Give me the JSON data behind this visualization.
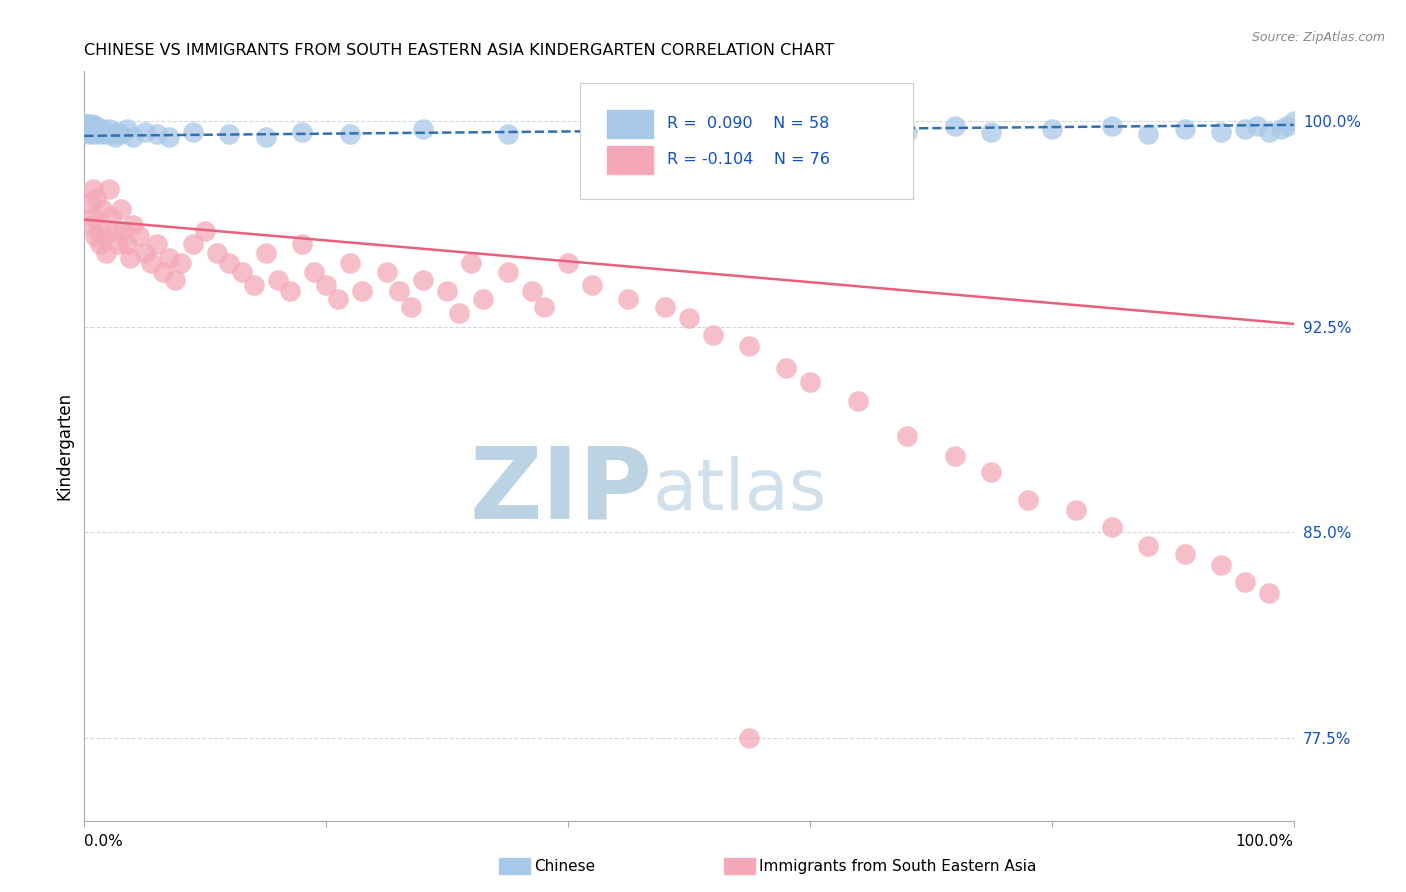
{
  "title": "CHINESE VS IMMIGRANTS FROM SOUTH EASTERN ASIA KINDERGARTEN CORRELATION CHART",
  "source": "Source: ZipAtlas.com",
  "ylabel": "Kindergarten",
  "ylabel_right_labels": [
    "100.0%",
    "92.5%",
    "85.0%",
    "77.5%"
  ],
  "ylabel_right_values": [
    1.0,
    0.925,
    0.85,
    0.775
  ],
  "xlim": [
    0.0,
    1.0
  ],
  "ylim": [
    0.745,
    1.018
  ],
  "blue_color": "#a8c8e8",
  "pink_color": "#f4a8b8",
  "blue_line_color": "#3070b0",
  "pink_line_color": "#e8607a",
  "legend_text_color": "#1050c0",
  "watermark_zip_color": "#b8d4e8",
  "watermark_atlas_color": "#c8dce8",
  "grid_color": "#d0d8e0",
  "blue_trend_intercept": 0.9945,
  "blue_trend_slope": 0.004,
  "pink_trend_intercept": 0.964,
  "pink_trend_slope": -0.038,
  "blue_x": [
    0.001,
    0.002,
    0.002,
    0.003,
    0.003,
    0.003,
    0.004,
    0.004,
    0.005,
    0.005,
    0.006,
    0.006,
    0.007,
    0.007,
    0.008,
    0.008,
    0.009,
    0.01,
    0.01,
    0.012,
    0.013,
    0.015,
    0.016,
    0.018,
    0.02,
    0.022,
    0.025,
    0.028,
    0.03,
    0.035,
    0.04,
    0.05,
    0.06,
    0.07,
    0.09,
    0.12,
    0.15,
    0.18,
    0.22,
    0.28,
    0.35,
    0.45,
    0.55,
    0.62,
    0.68,
    0.72,
    0.75,
    0.8,
    0.85,
    0.88,
    0.91,
    0.94,
    0.96,
    0.97,
    0.98,
    0.99,
    0.995,
    1.0
  ],
  "blue_y": [
    0.998,
    0.999,
    0.997,
    0.998,
    0.996,
    0.999,
    0.997,
    0.995,
    0.998,
    0.996,
    0.997,
    0.999,
    0.996,
    0.998,
    0.997,
    0.995,
    0.996,
    0.997,
    0.998,
    0.996,
    0.995,
    0.997,
    0.996,
    0.995,
    0.997,
    0.995,
    0.994,
    0.996,
    0.995,
    0.997,
    0.994,
    0.996,
    0.995,
    0.994,
    0.996,
    0.995,
    0.994,
    0.996,
    0.995,
    0.997,
    0.995,
    0.996,
    0.995,
    0.997,
    0.996,
    0.998,
    0.996,
    0.997,
    0.998,
    0.995,
    0.997,
    0.996,
    0.997,
    0.998,
    0.996,
    0.997,
    0.998,
    1.0
  ],
  "pink_x": [
    0.005,
    0.006,
    0.007,
    0.008,
    0.009,
    0.01,
    0.012,
    0.013,
    0.015,
    0.016,
    0.018,
    0.02,
    0.022,
    0.025,
    0.028,
    0.03,
    0.032,
    0.035,
    0.038,
    0.04,
    0.045,
    0.05,
    0.055,
    0.06,
    0.065,
    0.07,
    0.075,
    0.08,
    0.09,
    0.1,
    0.11,
    0.12,
    0.13,
    0.14,
    0.15,
    0.16,
    0.17,
    0.18,
    0.19,
    0.2,
    0.21,
    0.22,
    0.23,
    0.25,
    0.26,
    0.27,
    0.28,
    0.3,
    0.31,
    0.32,
    0.33,
    0.35,
    0.37,
    0.38,
    0.4,
    0.42,
    0.45,
    0.48,
    0.5,
    0.52,
    0.55,
    0.58,
    0.6,
    0.64,
    0.68,
    0.72,
    0.75,
    0.78,
    0.82,
    0.85,
    0.88,
    0.91,
    0.94,
    0.96,
    0.98,
    0.55
  ],
  "pink_y": [
    0.97,
    0.962,
    0.975,
    0.965,
    0.958,
    0.972,
    0.96,
    0.955,
    0.968,
    0.958,
    0.952,
    0.975,
    0.965,
    0.96,
    0.955,
    0.968,
    0.96,
    0.955,
    0.95,
    0.962,
    0.958,
    0.952,
    0.948,
    0.955,
    0.945,
    0.95,
    0.942,
    0.948,
    0.955,
    0.96,
    0.952,
    0.948,
    0.945,
    0.94,
    0.952,
    0.942,
    0.938,
    0.955,
    0.945,
    0.94,
    0.935,
    0.948,
    0.938,
    0.945,
    0.938,
    0.932,
    0.942,
    0.938,
    0.93,
    0.948,
    0.935,
    0.945,
    0.938,
    0.932,
    0.948,
    0.94,
    0.935,
    0.932,
    0.928,
    0.922,
    0.918,
    0.91,
    0.905,
    0.898,
    0.885,
    0.878,
    0.872,
    0.862,
    0.858,
    0.852,
    0.845,
    0.842,
    0.838,
    0.832,
    0.828,
    0.775
  ]
}
